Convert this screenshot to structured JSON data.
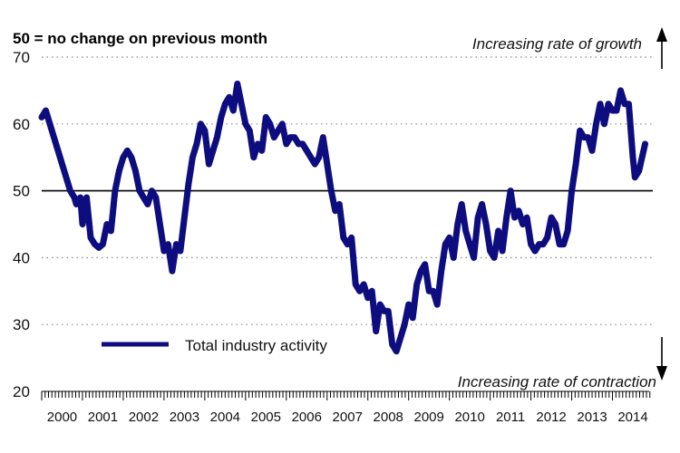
{
  "chart_data": {
    "type": "line",
    "note": "50 = no change on previous month",
    "annotation_top": "Increasing rate of growth",
    "annotation_bottom": "Increasing rate of contraction",
    "ylim": [
      20,
      70
    ],
    "yticks": [
      20,
      30,
      40,
      50,
      60,
      70
    ],
    "xlim": [
      2000.0,
      2014.9
    ],
    "x_tick_labels": [
      "2000",
      "2001",
      "2002",
      "2003",
      "2004",
      "2005",
      "2006",
      "2007",
      "2008",
      "2009",
      "2010",
      "2011",
      "2012",
      "2013",
      "2014"
    ],
    "reference_line": 50,
    "grid": "dotted horizontal at 30, 40, 60, 70",
    "legend_position": "lower-left",
    "colors": {
      "series": "#0d0d80",
      "reference": "#000000",
      "grid": "#888888"
    },
    "series": [
      {
        "name": "Total industry activity",
        "points": [
          [
            2000.0,
            61
          ],
          [
            2000.1,
            62
          ],
          [
            2000.2,
            60
          ],
          [
            2000.3,
            58
          ],
          [
            2000.4,
            56
          ],
          [
            2000.5,
            54
          ],
          [
            2000.6,
            52
          ],
          [
            2000.7,
            50
          ],
          [
            2000.8,
            49
          ],
          [
            2000.85,
            48
          ],
          [
            2000.95,
            49
          ],
          [
            2001.0,
            45
          ],
          [
            2001.1,
            49
          ],
          [
            2001.2,
            43
          ],
          [
            2001.3,
            42
          ],
          [
            2001.4,
            41.5
          ],
          [
            2001.5,
            42
          ],
          [
            2001.6,
            45
          ],
          [
            2001.7,
            44
          ],
          [
            2001.8,
            50
          ],
          [
            2001.9,
            53
          ],
          [
            2002.0,
            55
          ],
          [
            2002.1,
            56
          ],
          [
            2002.2,
            55
          ],
          [
            2002.3,
            53
          ],
          [
            2002.4,
            50
          ],
          [
            2002.5,
            49
          ],
          [
            2002.6,
            48
          ],
          [
            2002.7,
            50
          ],
          [
            2002.8,
            49
          ],
          [
            2002.9,
            45
          ],
          [
            2003.0,
            41
          ],
          [
            2003.1,
            42
          ],
          [
            2003.2,
            38
          ],
          [
            2003.3,
            42
          ],
          [
            2003.4,
            41
          ],
          [
            2003.5,
            46
          ],
          [
            2003.6,
            51
          ],
          [
            2003.7,
            55
          ],
          [
            2003.8,
            57
          ],
          [
            2003.9,
            60
          ],
          [
            2004.0,
            59
          ],
          [
            2004.1,
            54
          ],
          [
            2004.2,
            56
          ],
          [
            2004.3,
            58
          ],
          [
            2004.4,
            61
          ],
          [
            2004.5,
            63
          ],
          [
            2004.6,
            64
          ],
          [
            2004.7,
            62
          ],
          [
            2004.8,
            66
          ],
          [
            2004.9,
            63
          ],
          [
            2005.0,
            60
          ],
          [
            2005.1,
            59
          ],
          [
            2005.2,
            55
          ],
          [
            2005.3,
            57
          ],
          [
            2005.4,
            56
          ],
          [
            2005.5,
            61
          ],
          [
            2005.6,
            60
          ],
          [
            2005.7,
            58
          ],
          [
            2005.8,
            59
          ],
          [
            2005.9,
            60
          ],
          [
            2006.0,
            57
          ],
          [
            2006.1,
            58
          ],
          [
            2006.2,
            58
          ],
          [
            2006.3,
            57
          ],
          [
            2006.4,
            57
          ],
          [
            2006.5,
            56
          ],
          [
            2006.6,
            55
          ],
          [
            2006.7,
            54
          ],
          [
            2006.8,
            55
          ],
          [
            2006.9,
            58
          ],
          [
            2007.0,
            54
          ],
          [
            2007.1,
            50
          ],
          [
            2007.2,
            47
          ],
          [
            2007.3,
            48
          ],
          [
            2007.4,
            43
          ],
          [
            2007.5,
            42
          ],
          [
            2007.6,
            43
          ],
          [
            2007.7,
            36
          ],
          [
            2007.8,
            35
          ],
          [
            2007.9,
            36
          ],
          [
            2008.0,
            34
          ],
          [
            2008.1,
            35
          ],
          [
            2008.2,
            29
          ],
          [
            2008.3,
            33
          ],
          [
            2008.4,
            32
          ],
          [
            2008.5,
            32
          ],
          [
            2008.6,
            27
          ],
          [
            2008.7,
            26
          ],
          [
            2008.8,
            28
          ],
          [
            2008.9,
            30
          ],
          [
            2009.0,
            33
          ],
          [
            2009.1,
            31
          ],
          [
            2009.2,
            36
          ],
          [
            2009.3,
            38
          ],
          [
            2009.4,
            39
          ],
          [
            2009.5,
            35
          ],
          [
            2009.6,
            35
          ],
          [
            2009.7,
            33
          ],
          [
            2009.8,
            38
          ],
          [
            2009.9,
            42
          ],
          [
            2010.0,
            43
          ],
          [
            2010.1,
            40
          ],
          [
            2010.2,
            45
          ],
          [
            2010.3,
            48
          ],
          [
            2010.4,
            44
          ],
          [
            2010.5,
            42
          ],
          [
            2010.6,
            40
          ],
          [
            2010.7,
            46
          ],
          [
            2010.8,
            48
          ],
          [
            2010.9,
            45
          ],
          [
            2011.0,
            41
          ],
          [
            2011.1,
            40
          ],
          [
            2011.2,
            44
          ],
          [
            2011.3,
            41
          ],
          [
            2011.4,
            46
          ],
          [
            2011.5,
            50
          ],
          [
            2011.6,
            46
          ],
          [
            2011.7,
            47
          ],
          [
            2011.8,
            45
          ],
          [
            2011.9,
            46
          ],
          [
            2012.0,
            42
          ],
          [
            2012.1,
            41
          ],
          [
            2012.2,
            42
          ],
          [
            2012.3,
            42
          ],
          [
            2012.4,
            43
          ],
          [
            2012.5,
            46
          ],
          [
            2012.6,
            45
          ],
          [
            2012.7,
            42
          ],
          [
            2012.8,
            42
          ],
          [
            2012.9,
            44
          ],
          [
            2013.0,
            50
          ],
          [
            2013.1,
            54
          ],
          [
            2013.2,
            59
          ],
          [
            2013.3,
            58
          ],
          [
            2013.4,
            58
          ],
          [
            2013.5,
            56
          ],
          [
            2013.6,
            60
          ],
          [
            2013.7,
            63
          ],
          [
            2013.8,
            60
          ],
          [
            2013.9,
            63
          ],
          [
            2014.0,
            62
          ],
          [
            2014.1,
            62
          ],
          [
            2014.2,
            65
          ],
          [
            2014.3,
            63
          ],
          [
            2014.4,
            63
          ],
          [
            2014.5,
            55
          ],
          [
            2014.55,
            52
          ],
          [
            2014.65,
            53
          ],
          [
            2014.8,
            57
          ]
        ]
      }
    ]
  }
}
